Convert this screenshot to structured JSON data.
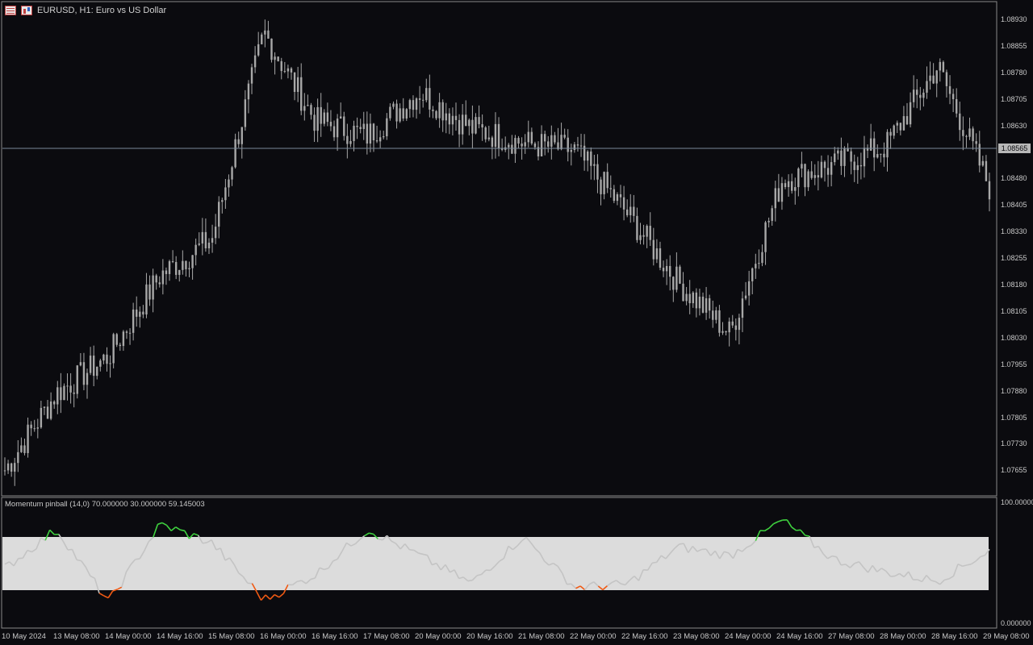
{
  "window": {
    "title": "EURUSD, H1:  Euro vs US Dollar",
    "menu_icon": "chart-menu-icon",
    "chart_icon": "chart-type-icon"
  },
  "price_axis": {
    "ticks": [
      "1.08930",
      "1.08855",
      "1.08780",
      "1.08705",
      "1.08630",
      "1.08480",
      "1.08405",
      "1.08330",
      "1.08255",
      "1.08180",
      "1.08105",
      "1.08030",
      "1.07955",
      "1.07880",
      "1.07805",
      "1.07730",
      "1.07655"
    ],
    "current_price": "1.08565"
  },
  "time_axis": {
    "labels": [
      "10 May 2024",
      "13 May 08:00",
      "14 May 00:00",
      "14 May 16:00",
      "15 May 08:00",
      "16 May 00:00",
      "16 May 16:00",
      "17 May 08:00",
      "20 May 00:00",
      "20 May 16:00",
      "21 May 08:00",
      "22 May 00:00",
      "22 May 16:00",
      "23 May 08:00",
      "24 May 00:00",
      "24 May 16:00",
      "27 May 08:00",
      "28 May 00:00",
      "28 May 16:00",
      "29 May 08:00"
    ]
  },
  "indicator": {
    "label": "Momentum pinball (14,0) 70.000000 30.000000 59.145003",
    "scale_top": "100.000000",
    "scale_bottom": "0.000000"
  },
  "colors": {
    "background": "#0b0b0f",
    "candles": "#a8a8a8",
    "band": "#dcdcdc",
    "line": "#c4c4c4",
    "overbought": "#3fd13f",
    "oversold": "#f05a14"
  },
  "chart_data": [
    {
      "type": "line",
      "title": "EURUSD, H1:  Euro vs US Dollar",
      "xlabel": "",
      "ylabel": "",
      "ylim": [
        1.0762,
        1.08965
      ],
      "x": [
        "10 May 2024",
        "13 May 08:00",
        "14 May 00:00",
        "14 May 16:00",
        "15 May 08:00",
        "16 May 00:00",
        "16 May 16:00",
        "17 May 08:00",
        "20 May 00:00",
        "20 May 16:00",
        "21 May 08:00",
        "22 May 00:00",
        "22 May 16:00",
        "23 May 08:00",
        "24 May 00:00",
        "24 May 16:00",
        "27 May 08:00",
        "28 May 00:00",
        "28 May 16:00",
        "29 May 08:00"
      ],
      "series": [
        {
          "values": [
            1.0769,
            1.079,
            1.08,
            1.0822,
            1.0832,
            1.0888,
            1.0864,
            1.086,
            1.0872,
            1.0862,
            1.0858,
            1.0856,
            1.0839,
            1.082,
            1.0806,
            1.0848,
            1.0852,
            1.0857,
            1.0879,
            1.0846
          ]
        }
      ],
      "current_price": 1.08565,
      "grid": false
    },
    {
      "type": "line",
      "title": "Momentum pinball (14,0) 70.000000 30.000000 59.145003",
      "ylim": [
        0,
        100
      ],
      "overbought": 70,
      "oversold": 30,
      "last_value": 59.145003,
      "x": [
        "10 May 2024",
        "13 May 08:00",
        "14 May 00:00",
        "14 May 16:00",
        "15 May 08:00",
        "16 May 00:00",
        "16 May 16:00",
        "17 May 08:00",
        "20 May 00:00",
        "20 May 16:00",
        "21 May 08:00",
        "22 May 00:00",
        "22 May 16:00",
        "23 May 08:00",
        "24 May 00:00",
        "24 May 16:00",
        "27 May 08:00",
        "28 May 00:00",
        "28 May 16:00",
        "29 May 08:00"
      ],
      "series": [
        {
          "values": [
            45,
            76,
            18,
            80,
            65,
            20,
            40,
            76,
            55,
            33,
            70,
            30,
            32,
            62,
            55,
            83,
            52,
            42,
            35,
            59
          ]
        }
      ]
    }
  ]
}
